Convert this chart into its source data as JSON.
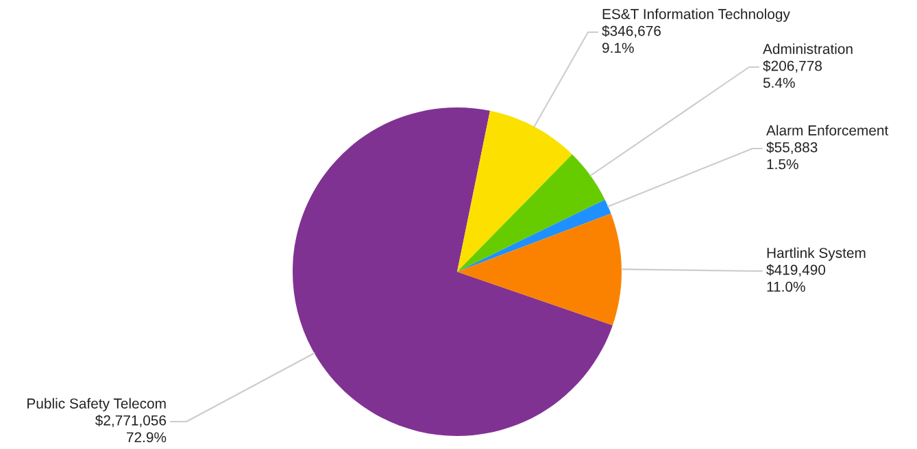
{
  "chart_data": {
    "type": "pie",
    "categories": [
      "Public Safety Telecom",
      "ES&T Information Technology",
      "Administration",
      "Alarm Enforcement",
      "Hartlink System"
    ],
    "values": [
      2771056,
      346676,
      206778,
      55883,
      419490
    ],
    "colors": [
      "#803293",
      "#fbe000",
      "#66cc00",
      "#1e90ff",
      "#fa8200"
    ],
    "value_labels": [
      "$2,771,056\n72.9%",
      "$346,676\n9.1%",
      "$206,778\n5.4%",
      "$55,883\n1.5%",
      "$419,490\n11.0%"
    ],
    "legend": false
  }
}
